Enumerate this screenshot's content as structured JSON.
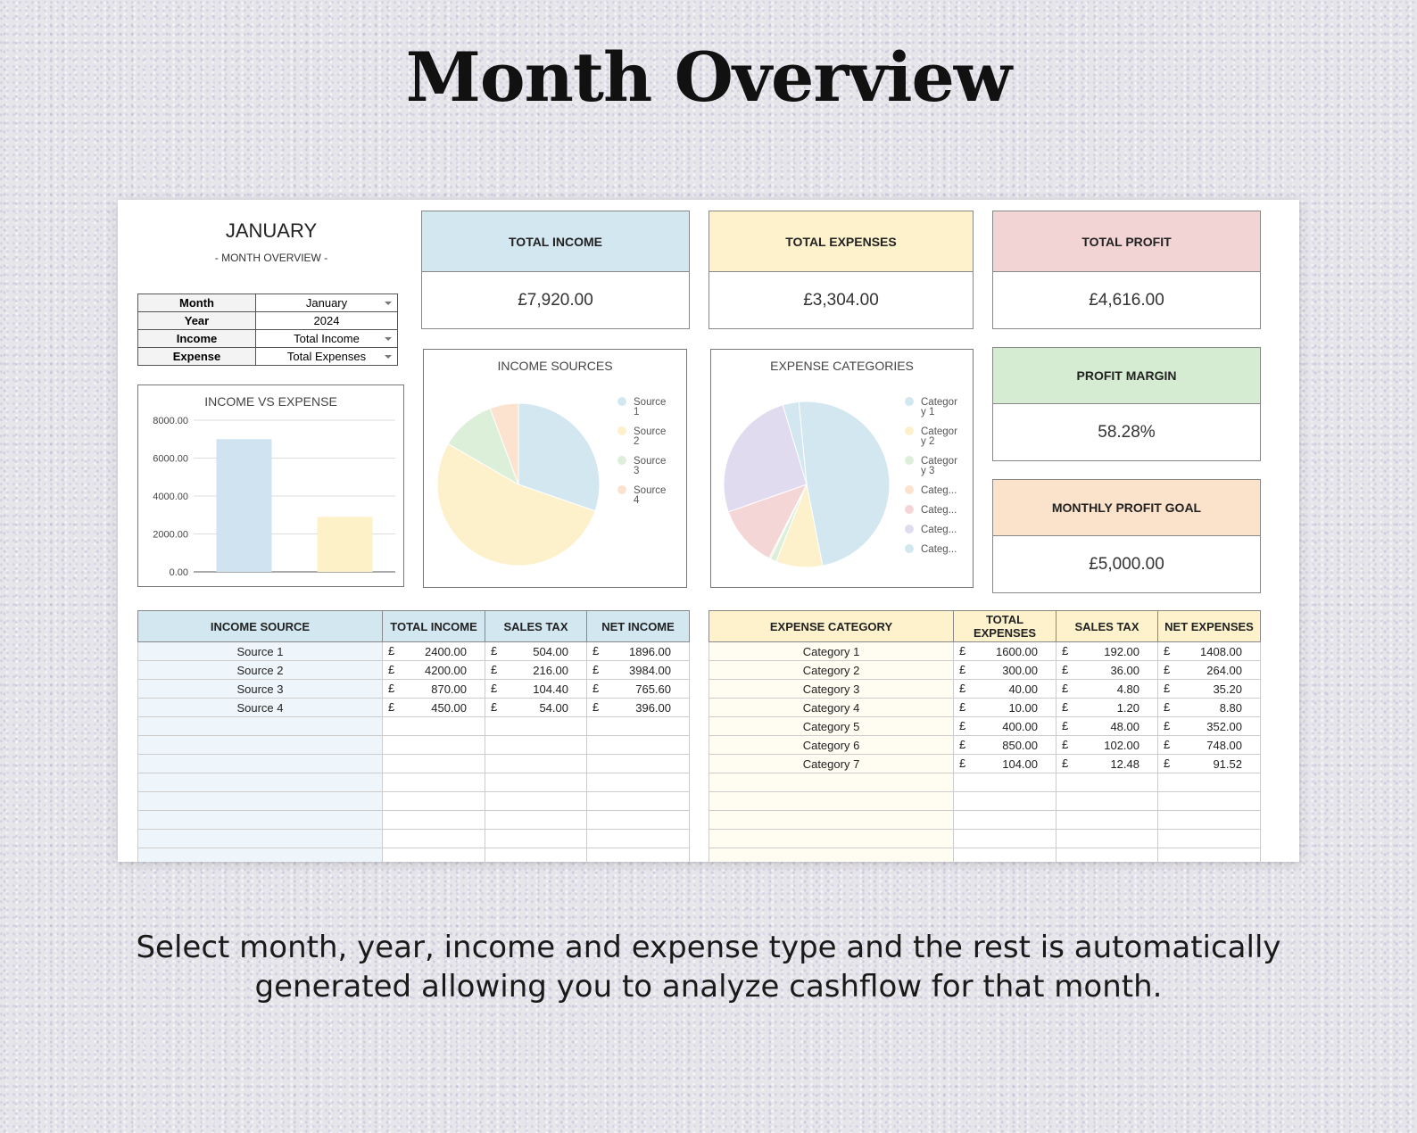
{
  "hero": {
    "title": "Month Overview",
    "caption": "Select month, year, income and expense type and the rest is automatically generated allowing you to analyze cashflow for that month."
  },
  "header": {
    "month_title": "JANUARY",
    "subtitle": "- MONTH OVERVIEW -"
  },
  "selectors": [
    {
      "label": "Month",
      "value": "January",
      "dropdown": true
    },
    {
      "label": "Year",
      "value": "2024",
      "dropdown": false
    },
    {
      "label": "Income",
      "value": "Total Income",
      "dropdown": true
    },
    {
      "label": "Expense",
      "value": "Total Expenses",
      "dropdown": true
    }
  ],
  "cards": {
    "total_income": {
      "label": "TOTAL INCOME",
      "value": "£7,920.00",
      "color": "#d3e7f1"
    },
    "total_expenses": {
      "label": "TOTAL EXPENSES",
      "value": "£3,304.00",
      "color": "#fdf2cc"
    },
    "total_profit": {
      "label": "TOTAL PROFIT",
      "value": "£4,616.00",
      "color": "#f3d4d4"
    },
    "profit_margin": {
      "label": "PROFIT MARGIN",
      "value": "58.28%",
      "color": "#d6ecd2"
    },
    "monthly_goal": {
      "label": "MONTHLY PROFIT GOAL",
      "value": "£5,000.00",
      "color": "#fbe3cb"
    }
  },
  "chart_data": [
    {
      "type": "bar",
      "title": "INCOME VS EXPENSE",
      "categories": [
        "Income",
        "Expense"
      ],
      "values": [
        7000,
        2900
      ],
      "colors": [
        "#cfe4f0",
        "#fdf1c8"
      ],
      "ylim": [
        0,
        8000
      ],
      "yticks": [
        "8000.00",
        "6000.00",
        "4000.00",
        "2000.00",
        "0.00"
      ],
      "grid": true
    },
    {
      "type": "pie",
      "title": "INCOME SOURCES",
      "labels": [
        "Source 1",
        "Source 2",
        "Source 3",
        "Source 4"
      ],
      "values": [
        2400,
        4200,
        870,
        450
      ],
      "colors": [
        "#d3e7f1",
        "#fdf1cb",
        "#dcefd8",
        "#fbe3cf"
      ],
      "legend": "right"
    },
    {
      "type": "pie",
      "title": "EXPENSE CATEGORIES",
      "labels": [
        "Category 1",
        "Category 2",
        "Category 3",
        "Categ...",
        "Categ...",
        "Categ...",
        "Categ..."
      ],
      "legend_lines": [
        [
          "Categor",
          "y 1"
        ],
        [
          "Categor",
          "y 2"
        ],
        [
          "Categor",
          "y 3"
        ],
        [
          "Categ..."
        ],
        [
          "Categ..."
        ],
        [
          "Categ..."
        ],
        [
          "Categ..."
        ]
      ],
      "values": [
        1600,
        300,
        40,
        10,
        400,
        850,
        104
      ],
      "colors": [
        "#d3e7f1",
        "#fdf1cb",
        "#dcefd8",
        "#fbe3cf",
        "#f5d6d6",
        "#e0dbef",
        "#d3e7f1"
      ],
      "legend": "right"
    }
  ],
  "income_table": {
    "headers": [
      "INCOME SOURCE",
      "TOTAL INCOME",
      "SALES TAX",
      "NET INCOME"
    ],
    "currency": "£",
    "rows": [
      [
        "Source 1",
        "2400.00",
        "504.00",
        "1896.00"
      ],
      [
        "Source 2",
        "4200.00",
        "216.00",
        "3984.00"
      ],
      [
        "Source 3",
        "870.00",
        "104.40",
        "765.60"
      ],
      [
        "Source 4",
        "450.00",
        "54.00",
        "396.00"
      ]
    ],
    "header_color": "#d3e7f1",
    "name_col_color": "#eef6fb"
  },
  "expense_table": {
    "headers": [
      "EXPENSE CATEGORY",
      "TOTAL EXPENSES",
      "SALES TAX",
      "NET EXPENSES"
    ],
    "currency": "£",
    "rows": [
      [
        "Category 1",
        "1600.00",
        "192.00",
        "1408.00"
      ],
      [
        "Category 2",
        "300.00",
        "36.00",
        "264.00"
      ],
      [
        "Category 3",
        "40.00",
        "4.80",
        "35.20"
      ],
      [
        "Category 4",
        "10.00",
        "1.20",
        "8.80"
      ],
      [
        "Category 5",
        "400.00",
        "48.00",
        "352.00"
      ],
      [
        "Category 6",
        "850.00",
        "102.00",
        "748.00"
      ],
      [
        "Category 7",
        "104.00",
        "12.48",
        "91.52"
      ]
    ],
    "header_color": "#fdf2cc",
    "name_col_color": "#fffcf2"
  }
}
